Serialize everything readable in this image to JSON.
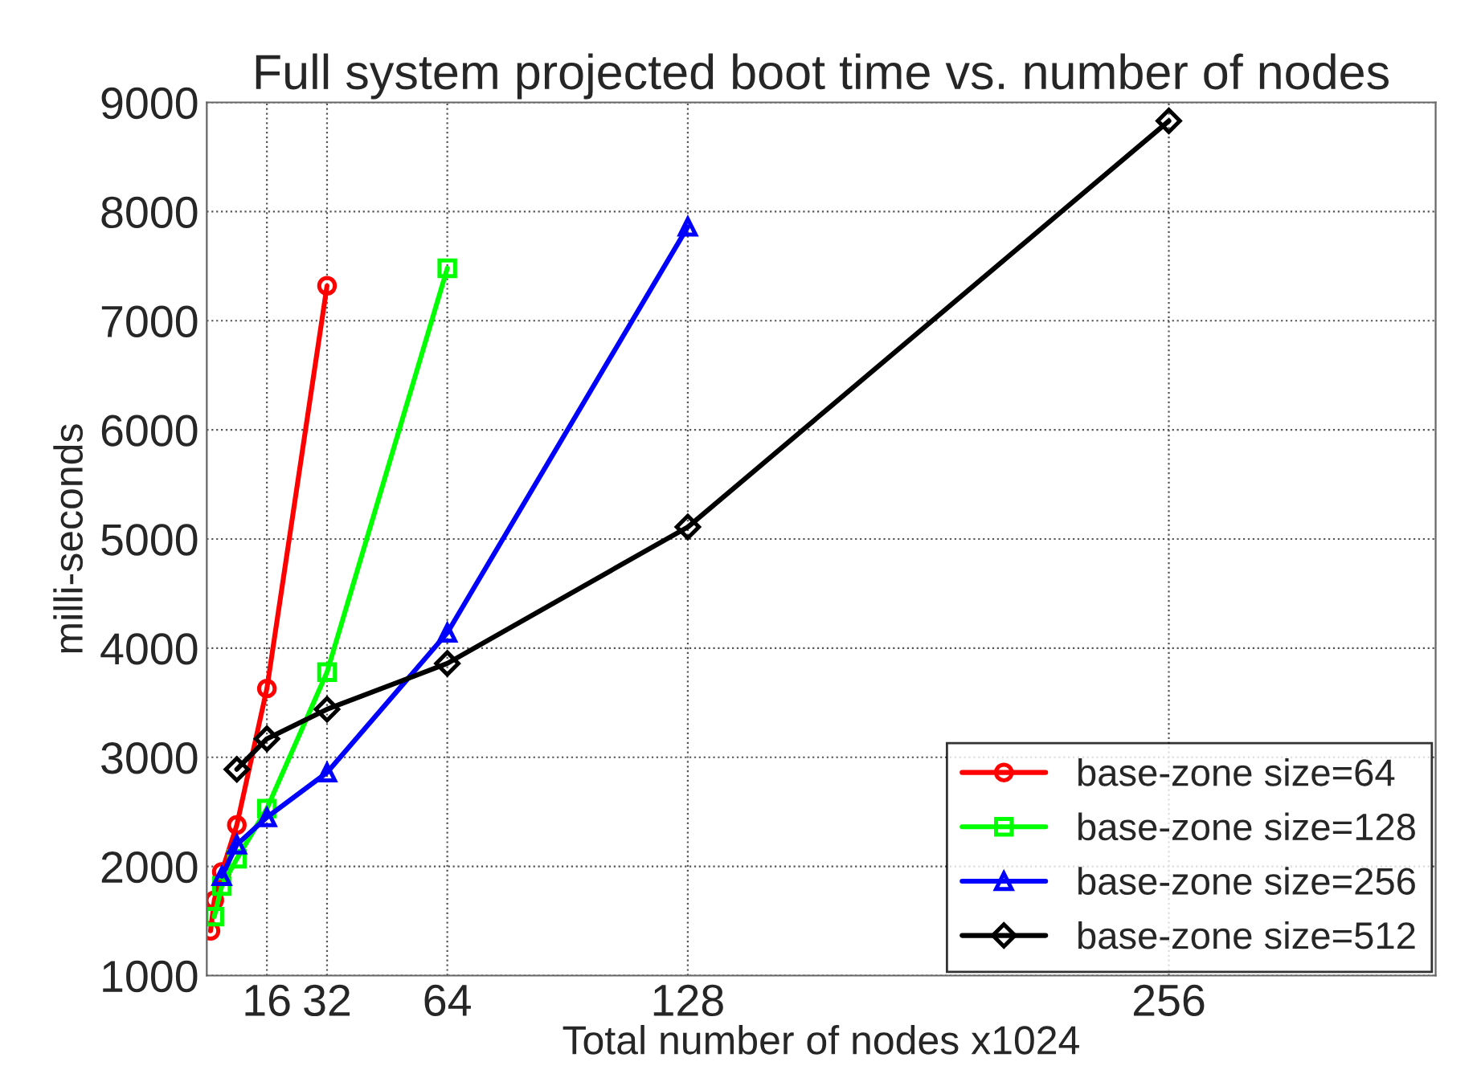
{
  "chart_data": {
    "type": "line",
    "title": "Full system projected boot time vs. number of nodes",
    "xlabel": "Total number of nodes x1024",
    "ylabel": "milli-seconds",
    "xlim": [
      0,
      327
    ],
    "xticks": [
      16,
      32,
      64,
      128,
      256
    ],
    "ylim": [
      1000,
      9000
    ],
    "yticks": [
      1000,
      2000,
      3000,
      4000,
      5000,
      6000,
      7000,
      8000,
      9000
    ],
    "grid": true,
    "legend": "bottom right",
    "series": [
      {
        "name": "base-zone size=64",
        "color": "#ff0000",
        "marker": "circle",
        "x": [
          1,
          2,
          4,
          8,
          16,
          32
        ],
        "values": [
          1410,
          1690,
          1950,
          2380,
          3630,
          7320
        ]
      },
      {
        "name": "base-zone size=128",
        "color": "#00ff00",
        "marker": "square",
        "x": [
          2,
          4,
          8,
          16,
          32,
          64
        ],
        "values": [
          1540,
          1820,
          2070,
          2530,
          3780,
          7480
        ]
      },
      {
        "name": "base-zone size=256",
        "color": "#0000ff",
        "marker": "triangle",
        "x": [
          4,
          8,
          16,
          32,
          64,
          128
        ],
        "values": [
          1910,
          2200,
          2450,
          2860,
          4140,
          7860
        ]
      },
      {
        "name": "base-zone size=512",
        "color": "#000000",
        "marker": "diamond",
        "x": [
          8,
          16,
          32,
          64,
          128,
          256
        ],
        "values": [
          2890,
          3170,
          3440,
          3860,
          5110,
          8830
        ]
      }
    ]
  }
}
